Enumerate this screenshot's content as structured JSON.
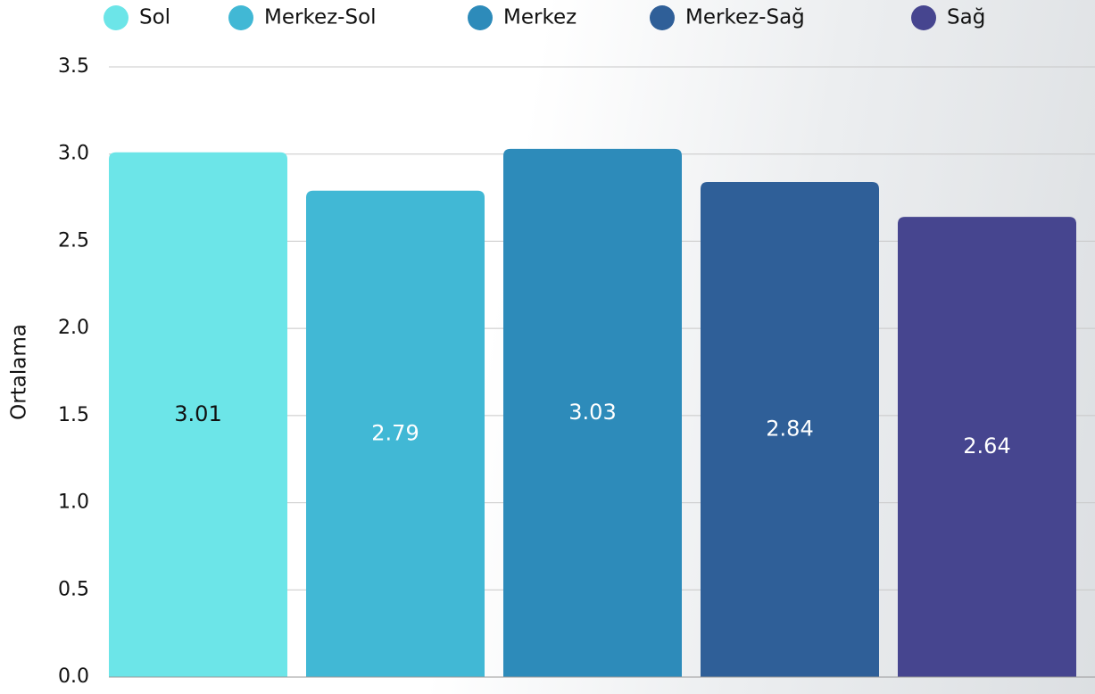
{
  "chart_data": {
    "type": "bar",
    "y_label": "Ortalama",
    "categories": [
      null
    ],
    "series": [
      {
        "name": "Sol",
        "color": "#6ce5e8",
        "values": [
          3.01
        ]
      },
      {
        "name": "Merkez-Sol",
        "color": "#41b8d5",
        "values": [
          2.79
        ]
      },
      {
        "name": "Merkez",
        "color": "#2d8bba",
        "values": [
          3.03
        ]
      },
      {
        "name": "Merkez-Sağ",
        "color": "#2f5f98",
        "values": [
          2.84
        ]
      },
      {
        "name": "Sağ",
        "color": "#46458f",
        "values": [
          2.64
        ]
      }
    ],
    "ylim": [
      0,
      3.5
    ],
    "yticks": [
      {
        "value": 0,
        "label": "0.0"
      },
      0.5,
      {
        "value": 1,
        "label": "1.0"
      },
      1.5,
      {
        "value": 2,
        "label": "2.0"
      },
      2.5,
      {
        "value": 3,
        "label": "3.0"
      },
      3.5
    ],
    "grid": true,
    "legend": "top"
  }
}
